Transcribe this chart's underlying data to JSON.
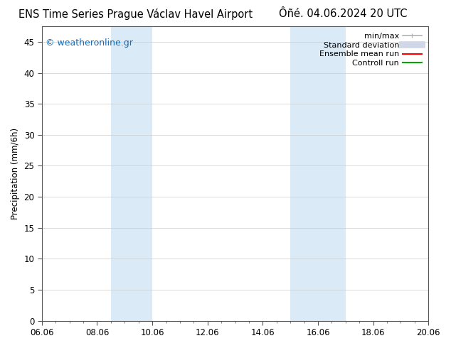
{
  "title_left": "ENS Time Series Prague Václav Havel Airport",
  "title_right": "Ôñé. 04.06.2024 20 UTC",
  "ylabel": "Precipitation (mm/6h)",
  "watermark": "© weatheronline.gr",
  "watermark_color": "#1a6bb5",
  "ylim": [
    0,
    47.5
  ],
  "yticks": [
    0,
    5,
    10,
    15,
    20,
    25,
    30,
    35,
    40,
    45
  ],
  "xlim": [
    0,
    14
  ],
  "xtick_labels": [
    "06.06",
    "08.06",
    "10.06",
    "12.06",
    "14.06",
    "16.06",
    "18.06",
    "20.06"
  ],
  "xtick_positions": [
    0,
    2,
    4,
    6,
    8,
    10,
    12,
    14
  ],
  "shaded_bands": [
    {
      "x_start": 2.5,
      "x_end": 4.0,
      "color": "#daeaf7"
    },
    {
      "x_start": 9.0,
      "x_end": 11.0,
      "color": "#daeaf7"
    }
  ],
  "legend_items": [
    {
      "label": "min/max",
      "color": "#b0b0b0",
      "lw": 1.2,
      "style": "line_with_caps"
    },
    {
      "label": "Standard deviation",
      "color": "#d0d8e8",
      "lw": 7,
      "style": "thick"
    },
    {
      "label": "Ensemble mean run",
      "color": "#ff0000",
      "lw": 1.5,
      "style": "line"
    },
    {
      "label": "Controll run",
      "color": "#00aa00",
      "lw": 1.5,
      "style": "line"
    }
  ],
  "background_color": "#ffffff",
  "plot_bg_color": "#ffffff",
  "grid_color": "#cccccc",
  "spine_color": "#555555",
  "title_fontsize": 10.5,
  "tick_fontsize": 8.5,
  "ylabel_fontsize": 8.5,
  "legend_fontsize": 8,
  "watermark_fontsize": 9
}
